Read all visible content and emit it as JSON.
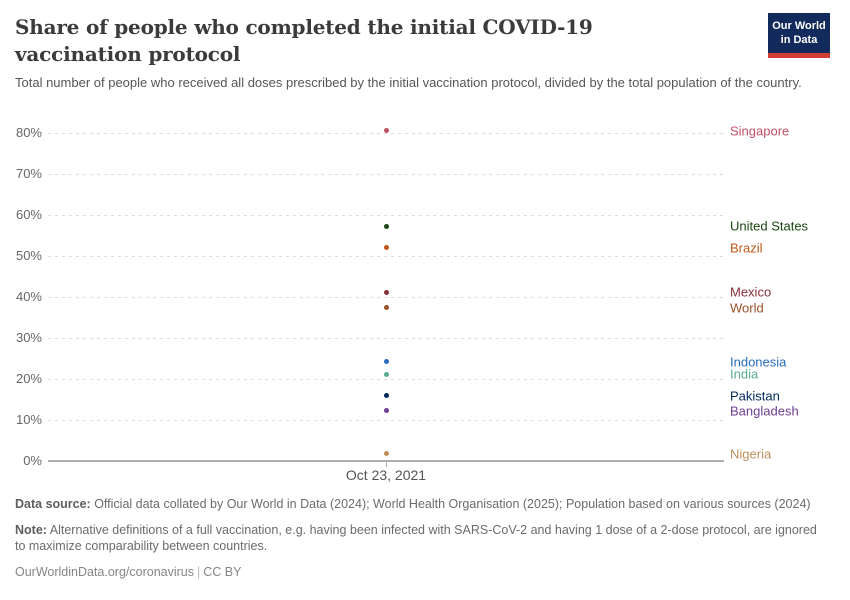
{
  "header": {
    "title": "Share of people who completed the initial COVID-19 vaccination protocol",
    "subtitle": "Total number of people who received all doses prescribed by the initial vaccination protocol, divided by the total population of the country.",
    "logo": {
      "line1": "Our World",
      "line2": "in Data",
      "bg_color": "#122a5c",
      "accent_color": "#d13d32"
    }
  },
  "chart_data": {
    "type": "scatter",
    "title": "Share of people who completed the initial COVID-19 vaccination protocol",
    "xlabel": "Oct 23, 2021",
    "ylabel": "",
    "ylim": [
      0,
      80
    ],
    "ytick_suffix": "%",
    "yticks": [
      0,
      10,
      20,
      30,
      40,
      50,
      60,
      70,
      80
    ],
    "grid": "horizontal-dashed",
    "legend_position": "right-edge-labels",
    "x": [
      "Oct 23, 2021"
    ],
    "series": [
      {
        "name": "Singapore",
        "value": 80.5,
        "color": "#C15065"
      },
      {
        "name": "United States",
        "value": 57.3,
        "color": "#18470F"
      },
      {
        "name": "Brazil",
        "value": 52.0,
        "color": "#C05917"
      },
      {
        "name": "Mexico",
        "value": 41.2,
        "color": "#883039"
      },
      {
        "name": "World",
        "value": 37.4,
        "color": "#9A5129"
      },
      {
        "name": "Indonesia",
        "value": 24.2,
        "color": "#286BBB"
      },
      {
        "name": "India",
        "value": 21.2,
        "color": "#58AC8C"
      },
      {
        "name": "Pakistan",
        "value": 15.9,
        "color": "#00295B"
      },
      {
        "name": "Bangladesh",
        "value": 12.2,
        "color": "#6D3E91"
      },
      {
        "name": "Nigeria",
        "value": 1.8,
        "color": "#BC8E5A"
      }
    ]
  },
  "footer": {
    "datasource_label": "Data source:",
    "datasource_text": " Official data collated by Our World in Data (2024); World Health Organisation (2025); Population based on various sources (2024)",
    "note_label": "Note:",
    "note_text": " Alternative definitions of a full vaccination, e.g. having been infected with SARS-CoV-2 and having 1 dose of a 2-dose protocol, are ignored to maximize comparability between countries.",
    "url": "OurWorldinData.org/coronavirus",
    "separator": "|",
    "license": "CC BY"
  }
}
